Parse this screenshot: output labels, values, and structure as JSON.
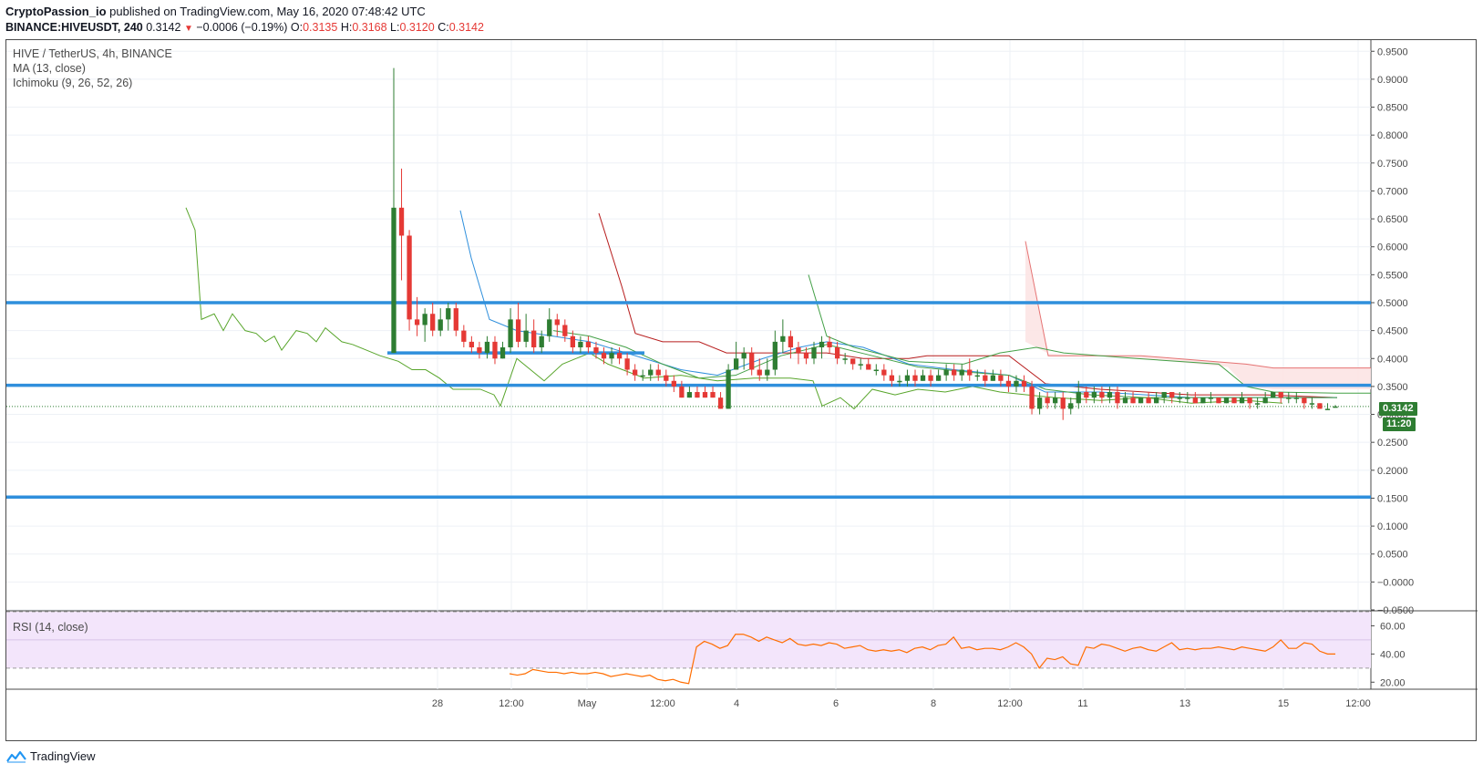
{
  "header": {
    "author": "CryptoPassion_io",
    "published": " published on TradingView.com, May 16, 2020 07:48:42 UTC",
    "symbol": "BINANCE:HIVEUSDT, 240",
    "last": "0.3142",
    "change_arrow": "▼",
    "change": "−0.0006 (−0.19%)",
    "o_label": "O:",
    "o": "0.3135",
    "h_label": "H:",
    "h": "0.3168",
    "l_label": "L:",
    "l": "0.3120",
    "c_label": "C:",
    "c": "0.3142"
  },
  "legend": {
    "title": "HIVE / TetherUS, 4h, BINANCE",
    "ma": "MA (13, close)",
    "ichimoku": "Ichimoku (9, 26, 52, 26)",
    "rsi": "RSI (14, close)"
  },
  "price_tag": "0.3142",
  "time_tag": "11:20",
  "brand": "TradingView",
  "icons": {
    "brand_logo": "tradingview-logo-icon"
  },
  "colors": {
    "up": "#2e7d32",
    "down": "#e53935",
    "level_line": "#2f8fdc",
    "tenkan": "#2f8fdc",
    "kijun": "#b71c1c",
    "chikou": "#58a52b",
    "span_a": "#43a047",
    "span_b": "#e57373",
    "cloud_bear": "#fce4e4",
    "rsi_line": "#ff6d00",
    "rsi_band": "#f3e5fb"
  },
  "chart_data": {
    "type": "candlestick",
    "title": "HIVE / TetherUS, 4h, BINANCE",
    "y_ticks": [
      "0.9500",
      "0.9000",
      "0.8500",
      "0.8000",
      "0.7500",
      "0.7000",
      "0.6500",
      "0.6000",
      "0.5500",
      "0.5000",
      "0.4500",
      "0.4000",
      "0.3500",
      "0.3000",
      "0.2500",
      "0.2000",
      "0.1500",
      "0.1000",
      "0.0500",
      "−0.0000",
      "−0.0500"
    ],
    "ylim": [
      -0.05,
      0.97
    ],
    "x_ticks": [
      "28",
      "12:00",
      "May",
      "12:00",
      "4",
      "6",
      "8",
      "12:00",
      "11",
      "13",
      "15",
      "12:00"
    ],
    "horizontal_levels": [
      0.5,
      0.352,
      0.152
    ],
    "short_level": 0.41,
    "candles": [
      [
        0.41,
        0.67,
        0.92,
        0.41
      ],
      [
        0.67,
        0.62,
        0.74,
        0.54
      ],
      [
        0.62,
        0.47,
        0.63,
        0.45
      ],
      [
        0.47,
        0.46,
        0.51,
        0.44
      ],
      [
        0.46,
        0.48,
        0.49,
        0.43
      ],
      [
        0.48,
        0.45,
        0.5,
        0.44
      ],
      [
        0.45,
        0.47,
        0.49,
        0.44
      ],
      [
        0.47,
        0.49,
        0.5,
        0.45
      ],
      [
        0.49,
        0.45,
        0.5,
        0.44
      ],
      [
        0.45,
        0.43,
        0.46,
        0.42
      ],
      [
        0.43,
        0.42,
        0.44,
        0.41
      ],
      [
        0.42,
        0.41,
        0.43,
        0.4
      ],
      [
        0.41,
        0.43,
        0.44,
        0.4
      ],
      [
        0.43,
        0.4,
        0.44,
        0.39
      ],
      [
        0.4,
        0.42,
        0.43,
        0.4
      ],
      [
        0.42,
        0.47,
        0.49,
        0.41
      ],
      [
        0.47,
        0.43,
        0.5,
        0.42
      ],
      [
        0.43,
        0.45,
        0.48,
        0.42
      ],
      [
        0.45,
        0.42,
        0.47,
        0.41
      ],
      [
        0.42,
        0.44,
        0.45,
        0.41
      ],
      [
        0.44,
        0.47,
        0.49,
        0.43
      ],
      [
        0.47,
        0.46,
        0.48,
        0.44
      ],
      [
        0.46,
        0.44,
        0.47,
        0.43
      ],
      [
        0.44,
        0.42,
        0.45,
        0.41
      ],
      [
        0.42,
        0.43,
        0.44,
        0.41
      ],
      [
        0.43,
        0.42,
        0.44,
        0.41
      ],
      [
        0.42,
        0.41,
        0.43,
        0.4
      ],
      [
        0.41,
        0.4,
        0.42,
        0.39
      ],
      [
        0.4,
        0.41,
        0.42,
        0.39
      ],
      [
        0.41,
        0.4,
        0.42,
        0.39
      ],
      [
        0.4,
        0.38,
        0.41,
        0.37
      ],
      [
        0.38,
        0.37,
        0.39,
        0.36
      ],
      [
        0.37,
        0.37,
        0.38,
        0.36
      ],
      [
        0.37,
        0.38,
        0.39,
        0.36
      ],
      [
        0.38,
        0.37,
        0.39,
        0.36
      ],
      [
        0.37,
        0.36,
        0.38,
        0.35
      ],
      [
        0.36,
        0.35,
        0.37,
        0.34
      ],
      [
        0.35,
        0.33,
        0.36,
        0.33
      ],
      [
        0.33,
        0.34,
        0.35,
        0.33
      ],
      [
        0.34,
        0.33,
        0.35,
        0.33
      ],
      [
        0.34,
        0.33,
        0.35,
        0.33
      ],
      [
        0.34,
        0.33,
        0.35,
        0.33
      ],
      [
        0.33,
        0.31,
        0.34,
        0.31
      ],
      [
        0.31,
        0.38,
        0.39,
        0.31
      ],
      [
        0.38,
        0.4,
        0.43,
        0.38
      ],
      [
        0.4,
        0.41,
        0.42,
        0.38
      ],
      [
        0.41,
        0.38,
        0.42,
        0.37
      ],
      [
        0.38,
        0.37,
        0.4,
        0.36
      ],
      [
        0.37,
        0.38,
        0.4,
        0.36
      ],
      [
        0.38,
        0.43,
        0.45,
        0.37
      ],
      [
        0.43,
        0.44,
        0.47,
        0.41
      ],
      [
        0.44,
        0.42,
        0.45,
        0.4
      ],
      [
        0.42,
        0.41,
        0.43,
        0.39
      ],
      [
        0.41,
        0.4,
        0.42,
        0.39
      ],
      [
        0.4,
        0.42,
        0.43,
        0.39
      ],
      [
        0.42,
        0.43,
        0.44,
        0.4
      ],
      [
        0.43,
        0.42,
        0.44,
        0.41
      ],
      [
        0.42,
        0.4,
        0.43,
        0.39
      ],
      [
        0.4,
        0.4,
        0.41,
        0.39
      ],
      [
        0.4,
        0.39,
        0.4,
        0.38
      ],
      [
        0.39,
        0.39,
        0.4,
        0.38
      ],
      [
        0.39,
        0.38,
        0.4,
        0.38
      ],
      [
        0.38,
        0.38,
        0.39,
        0.37
      ],
      [
        0.38,
        0.37,
        0.39,
        0.36
      ],
      [
        0.37,
        0.36,
        0.38,
        0.35
      ],
      [
        0.36,
        0.36,
        0.37,
        0.35
      ],
      [
        0.36,
        0.37,
        0.38,
        0.35
      ],
      [
        0.37,
        0.36,
        0.38,
        0.35
      ],
      [
        0.36,
        0.37,
        0.38,
        0.36
      ],
      [
        0.37,
        0.36,
        0.38,
        0.35
      ],
      [
        0.36,
        0.37,
        0.38,
        0.36
      ],
      [
        0.37,
        0.38,
        0.39,
        0.36
      ],
      [
        0.38,
        0.37,
        0.39,
        0.36
      ],
      [
        0.37,
        0.38,
        0.39,
        0.36
      ],
      [
        0.38,
        0.37,
        0.4,
        0.36
      ],
      [
        0.37,
        0.37,
        0.38,
        0.36
      ],
      [
        0.37,
        0.36,
        0.38,
        0.35
      ],
      [
        0.36,
        0.37,
        0.38,
        0.36
      ],
      [
        0.37,
        0.36,
        0.38,
        0.35
      ],
      [
        0.36,
        0.35,
        0.37,
        0.34
      ],
      [
        0.35,
        0.36,
        0.37,
        0.34
      ],
      [
        0.36,
        0.35,
        0.37,
        0.34
      ],
      [
        0.35,
        0.31,
        0.36,
        0.3
      ],
      [
        0.31,
        0.33,
        0.34,
        0.3
      ],
      [
        0.33,
        0.32,
        0.34,
        0.31
      ],
      [
        0.32,
        0.33,
        0.34,
        0.31
      ],
      [
        0.33,
        0.31,
        0.34,
        0.29
      ],
      [
        0.31,
        0.32,
        0.33,
        0.3
      ],
      [
        0.32,
        0.34,
        0.36,
        0.31
      ],
      [
        0.34,
        0.33,
        0.35,
        0.32
      ],
      [
        0.33,
        0.34,
        0.35,
        0.32
      ],
      [
        0.34,
        0.33,
        0.35,
        0.32
      ],
      [
        0.33,
        0.34,
        0.35,
        0.32
      ],
      [
        0.34,
        0.32,
        0.35,
        0.31
      ],
      [
        0.32,
        0.33,
        0.34,
        0.32
      ],
      [
        0.33,
        0.32,
        0.34,
        0.32
      ],
      [
        0.32,
        0.33,
        0.33,
        0.32
      ],
      [
        0.33,
        0.32,
        0.34,
        0.32
      ],
      [
        0.32,
        0.33,
        0.34,
        0.32
      ],
      [
        0.33,
        0.34,
        0.34,
        0.32
      ],
      [
        0.34,
        0.33,
        0.34,
        0.32
      ],
      [
        0.33,
        0.33,
        0.34,
        0.32
      ],
      [
        0.33,
        0.33,
        0.34,
        0.32
      ],
      [
        0.33,
        0.32,
        0.34,
        0.32
      ],
      [
        0.32,
        0.33,
        0.33,
        0.32
      ],
      [
        0.33,
        0.33,
        0.34,
        0.32
      ],
      [
        0.33,
        0.32,
        0.33,
        0.32
      ],
      [
        0.32,
        0.33,
        0.33,
        0.32
      ],
      [
        0.33,
        0.32,
        0.33,
        0.32
      ],
      [
        0.32,
        0.33,
        0.34,
        0.32
      ],
      [
        0.33,
        0.32,
        0.33,
        0.31
      ],
      [
        0.32,
        0.32,
        0.33,
        0.31
      ],
      [
        0.32,
        0.33,
        0.34,
        0.32
      ],
      [
        0.33,
        0.34,
        0.34,
        0.33
      ],
      [
        0.34,
        0.33,
        0.34,
        0.32
      ],
      [
        0.33,
        0.33,
        0.34,
        0.32
      ],
      [
        0.33,
        0.33,
        0.34,
        0.32
      ],
      [
        0.33,
        0.32,
        0.33,
        0.31
      ],
      [
        0.32,
        0.32,
        0.33,
        0.31
      ],
      [
        0.32,
        0.31,
        0.32,
        0.31
      ],
      [
        0.31,
        0.31,
        0.32,
        0.31
      ],
      [
        0.3135,
        0.3142,
        0.3168,
        0.312
      ]
    ],
    "rsi": {
      "y_ticks": [
        "60.00",
        "40.00",
        "20.00"
      ],
      "ylim": [
        15,
        70
      ],
      "bands": [
        30,
        70
      ],
      "values": [
        26,
        25,
        26,
        29,
        28,
        27,
        27,
        26,
        27,
        26,
        26,
        27,
        26,
        24,
        25,
        26,
        25,
        24,
        25,
        22,
        21,
        22,
        20,
        19,
        45,
        49,
        47,
        44,
        46,
        54,
        54,
        52,
        49,
        52,
        50,
        48,
        51,
        47,
        46,
        47,
        46,
        48,
        47,
        44,
        45,
        46,
        43,
        42,
        43,
        42,
        43,
        41,
        44,
        45,
        43,
        46,
        47,
        52,
        44,
        45,
        43,
        44,
        44,
        43,
        45,
        48,
        45,
        40,
        30,
        37,
        36,
        38,
        33,
        32,
        45,
        44,
        47,
        46,
        44,
        42,
        44,
        45,
        43,
        42,
        45,
        48,
        43,
        44,
        43,
        44,
        44,
        45,
        44,
        43,
        45,
        44,
        43,
        42,
        45,
        50,
        44,
        44,
        48,
        47,
        42,
        40,
        40
      ]
    }
  }
}
